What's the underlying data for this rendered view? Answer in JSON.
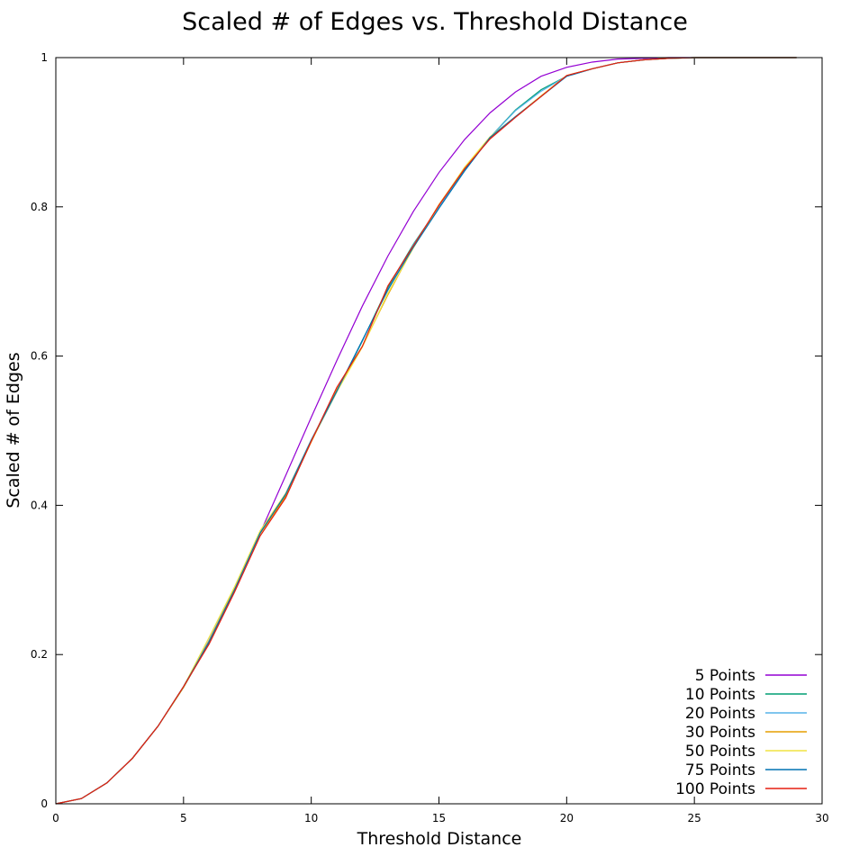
{
  "chart_data": {
    "type": "line",
    "title": "Scaled # of Edges vs. Threshold Distance",
    "xlabel": "Threshold Distance",
    "ylabel": "Scaled # of Edges",
    "xlim": [
      0,
      30
    ],
    "ylim": [
      0,
      1
    ],
    "x_ticks": [
      "0",
      "5",
      "10",
      "15",
      "20",
      "25",
      "30"
    ],
    "y_ticks": [
      "0",
      "0.2",
      "0.4",
      "0.6",
      "0.8",
      "1"
    ],
    "grid": false,
    "legend_position": "bottom-right",
    "series": [
      {
        "name": "5 Points",
        "color": "#9400d3",
        "x": [
          0,
          1,
          2,
          3,
          4,
          5,
          6,
          7,
          8,
          9,
          10,
          11,
          12,
          13,
          14,
          15,
          16,
          17,
          18,
          19,
          20,
          21,
          22,
          23,
          24,
          25,
          26,
          27,
          28,
          29
        ],
        "y": [
          0,
          0.007,
          0.028,
          0.061,
          0.104,
          0.157,
          0.219,
          0.288,
          0.363,
          0.44,
          0.518,
          0.594,
          0.667,
          0.734,
          0.794,
          0.846,
          0.89,
          0.926,
          0.954,
          0.975,
          0.987,
          0.994,
          0.998,
          0.999,
          1,
          1,
          1,
          1,
          1,
          1
        ]
      },
      {
        "name": "10 Points",
        "color": "#009e73",
        "x": [
          0,
          1,
          2,
          3,
          4,
          5,
          6,
          7,
          8,
          9,
          10,
          11,
          12,
          13,
          14,
          15,
          16,
          17,
          18,
          19,
          20,
          21,
          22,
          23,
          24,
          25,
          26,
          27,
          28,
          29
        ],
        "y": [
          0,
          0.007,
          0.028,
          0.061,
          0.104,
          0.156,
          0.216,
          0.287,
          0.365,
          0.413,
          0.486,
          0.552,
          0.62,
          0.692,
          0.75,
          0.8,
          0.849,
          0.893,
          0.93,
          0.957,
          0.975,
          0.985,
          0.993,
          0.997,
          0.999,
          1,
          1,
          1,
          1,
          1
        ]
      },
      {
        "name": "20 Points",
        "color": "#56b4e9",
        "x": [
          0,
          1,
          2,
          3,
          4,
          5,
          6,
          7,
          8,
          9,
          10,
          11,
          12,
          13,
          14,
          15,
          16,
          17,
          18,
          19,
          20,
          21,
          22,
          23,
          24,
          25,
          26,
          27,
          28,
          29
        ],
        "y": [
          0,
          0.007,
          0.028,
          0.061,
          0.104,
          0.157,
          0.219,
          0.289,
          0.364,
          0.416,
          0.488,
          0.553,
          0.621,
          0.688,
          0.749,
          0.8,
          0.848,
          0.893,
          0.929,
          0.955,
          0.975,
          0.985,
          0.993,
          0.997,
          0.999,
          1,
          1,
          1,
          1,
          1
        ]
      },
      {
        "name": "30 Points",
        "color": "#e69f00",
        "x": [
          0,
          1,
          2,
          3,
          4,
          5,
          6,
          7,
          8,
          9,
          10,
          11,
          12,
          13,
          14,
          15,
          16,
          17,
          18,
          19,
          20,
          21,
          22,
          23,
          24,
          25,
          26,
          27,
          28,
          29
        ],
        "y": [
          0,
          0.007,
          0.028,
          0.061,
          0.104,
          0.156,
          0.218,
          0.288,
          0.362,
          0.412,
          0.485,
          0.555,
          0.613,
          0.682,
          0.746,
          0.803,
          0.852,
          0.892,
          0.921,
          0.948,
          0.976,
          0.985,
          0.993,
          0.997,
          0.999,
          1,
          1,
          1,
          1,
          1
        ]
      },
      {
        "name": "50 Points",
        "color": "#f0e442",
        "x": [
          0,
          1,
          2,
          3,
          4,
          5,
          6,
          7,
          8,
          9,
          10,
          11,
          12,
          13,
          14,
          15,
          16,
          17,
          18,
          19,
          20,
          21,
          22,
          23,
          24,
          25,
          26,
          27,
          28,
          29
        ],
        "y": [
          0,
          0.007,
          0.028,
          0.061,
          0.104,
          0.157,
          0.223,
          0.291,
          0.366,
          0.416,
          0.487,
          0.552,
          0.612,
          0.684,
          0.745,
          0.802,
          0.853,
          0.894,
          0.921,
          0.949,
          0.976,
          0.985,
          0.993,
          0.997,
          0.999,
          1,
          1,
          1,
          1,
          1
        ]
      },
      {
        "name": "75 Points",
        "color": "#0072b2",
        "x": [
          0,
          1,
          2,
          3,
          4,
          5,
          6,
          7,
          8,
          9,
          10,
          11,
          12,
          13,
          14,
          15,
          16,
          17,
          18,
          19,
          20,
          21,
          22,
          23,
          24,
          25,
          26,
          27,
          28,
          29
        ],
        "y": [
          0,
          0.007,
          0.028,
          0.061,
          0.104,
          0.157,
          0.217,
          0.287,
          0.363,
          0.415,
          0.487,
          0.553,
          0.621,
          0.689,
          0.746,
          0.798,
          0.848,
          0.893,
          0.921,
          0.948,
          0.975,
          0.985,
          0.993,
          0.997,
          0.999,
          1,
          1,
          1,
          1,
          1
        ]
      },
      {
        "name": "100 Points",
        "color": "#e51e10",
        "x": [
          0,
          1,
          2,
          3,
          4,
          5,
          6,
          7,
          8,
          9,
          10,
          11,
          12,
          13,
          14,
          15,
          16,
          17,
          18,
          19,
          20,
          21,
          22,
          23,
          24,
          25,
          26,
          27,
          28,
          29
        ],
        "y": [
          0,
          0.007,
          0.028,
          0.061,
          0.104,
          0.157,
          0.214,
          0.284,
          0.359,
          0.41,
          0.486,
          0.558,
          0.613,
          0.694,
          0.748,
          0.802,
          0.851,
          0.891,
          0.92,
          0.948,
          0.976,
          0.985,
          0.993,
          0.997,
          0.999,
          1,
          1,
          1,
          1,
          1
        ]
      }
    ]
  }
}
